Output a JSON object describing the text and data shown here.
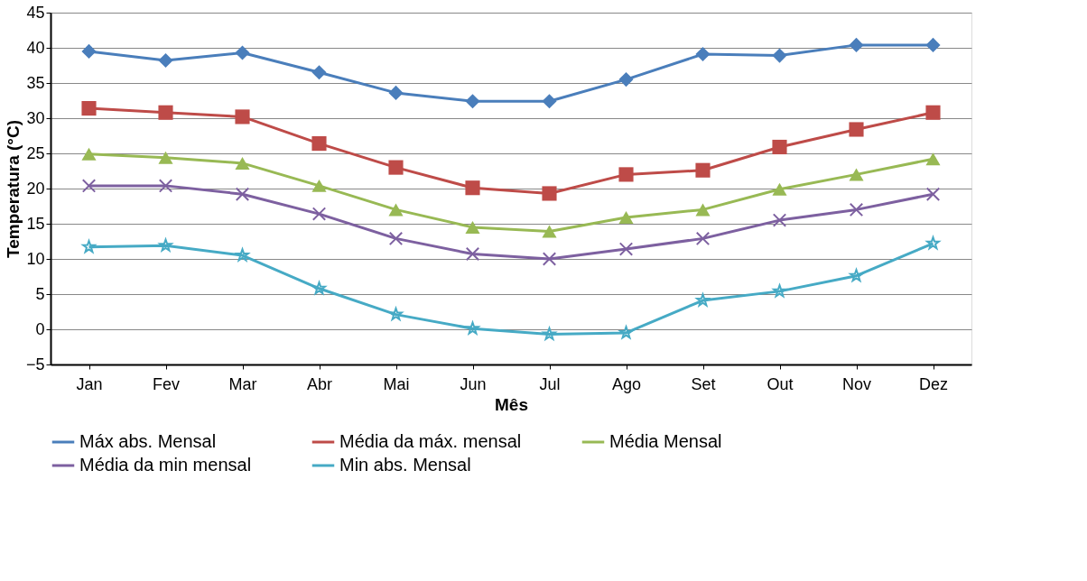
{
  "chart_data": {
    "type": "line",
    "xlabel": "Mês",
    "ylabel": "Temperatura (°C)",
    "categories": [
      "Jan",
      "Fev",
      "Mar",
      "Abr",
      "Mai",
      "Jun",
      "Jul",
      "Ago",
      "Set",
      "Out",
      "Nov",
      "Dez"
    ],
    "ylim": [
      -5,
      45
    ],
    "yticks": [
      -5,
      0,
      5,
      10,
      15,
      20,
      25,
      30,
      35,
      40,
      45
    ],
    "grid": "y",
    "legend": "bottom",
    "series": [
      {
        "name": "Máx abs. Mensal",
        "color": "#4a7ebb",
        "marker": "diamond",
        "values": [
          39.5,
          38.2,
          39.3,
          36.5,
          33.6,
          32.4,
          32.4,
          35.5,
          39.1,
          38.9,
          40.4,
          40.4
        ]
      },
      {
        "name": "Média da máx. mensal",
        "color": "#be4b48",
        "marker": "square",
        "values": [
          31.4,
          30.8,
          30.2,
          26.4,
          23.0,
          20.1,
          19.3,
          22.0,
          22.6,
          25.9,
          28.4,
          30.8
        ]
      },
      {
        "name": "Média Mensal",
        "color": "#98b954",
        "marker": "triangle",
        "values": [
          24.9,
          24.4,
          23.6,
          20.4,
          17.0,
          14.5,
          13.9,
          15.9,
          17.0,
          19.9,
          22.0,
          24.2
        ]
      },
      {
        "name": "Média da min mensal",
        "color": "#7d60a0",
        "marker": "cross",
        "values": [
          20.4,
          20.4,
          19.2,
          16.4,
          12.9,
          10.7,
          10.0,
          11.4,
          12.9,
          15.5,
          17.0,
          19.2
        ]
      },
      {
        "name": "Min abs. Mensal",
        "color": "#46aac5",
        "marker": "star",
        "values": [
          11.7,
          11.9,
          10.5,
          5.8,
          2.1,
          0.1,
          -0.7,
          -0.5,
          4.1,
          5.4,
          7.6,
          12.2
        ]
      }
    ]
  }
}
